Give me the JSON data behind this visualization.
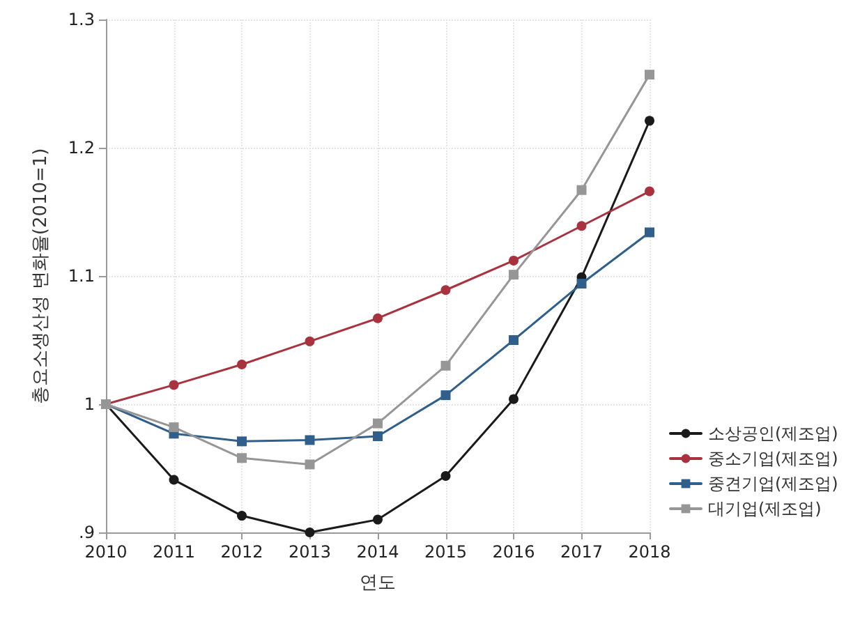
{
  "chart_data": {
    "type": "line",
    "xlabel": "연도",
    "ylabel": "총요소생산성 변화율(2010=1)",
    "x": [
      2010,
      2011,
      2012,
      2013,
      2014,
      2015,
      2016,
      2017,
      2018
    ],
    "xlim": [
      2010,
      2018
    ],
    "xticks": [
      2010,
      2011,
      2012,
      2013,
      2014,
      2015,
      2016,
      2017,
      2018
    ],
    "ylim": [
      0.9,
      1.3
    ],
    "yticks": [
      {
        "value": 0.9,
        "label": ".9"
      },
      1,
      1.1,
      1.2,
      1.3
    ],
    "grid": true,
    "legend": "bottom right",
    "line_style": "solid",
    "series": [
      {
        "name": "소상공인(제조업)",
        "color": "#1a1a1a",
        "marker": "circle",
        "values": [
          1,
          0.941,
          0.913,
          0.9,
          0.91,
          0.944,
          1.004,
          1.099,
          1.221
        ]
      },
      {
        "name": "중소기업(제조업)",
        "color": "#a8323e",
        "marker": "circle",
        "values": [
          1,
          1.015,
          1.031,
          1.049,
          1.067,
          1.089,
          1.112,
          1.139,
          1.166
        ]
      },
      {
        "name": "중견기업(제조업)",
        "color": "#2f5f8a",
        "marker": "square",
        "values": [
          1,
          0.977,
          0.971,
          0.972,
          0.975,
          1.007,
          1.05,
          1.094,
          1.134
        ]
      },
      {
        "name": "대기업(제조업)",
        "color": "#969696",
        "marker": "square",
        "values": [
          1,
          0.982,
          0.958,
          0.953,
          0.985,
          1.03,
          1.101,
          1.167,
          1.257
        ]
      }
    ]
  }
}
